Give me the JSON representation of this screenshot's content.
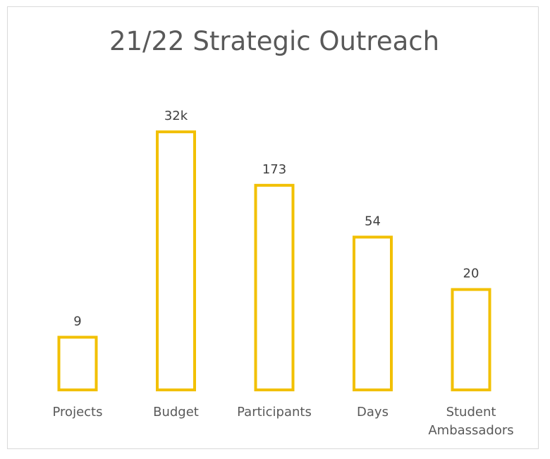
{
  "chart_data": {
    "type": "bar",
    "title": "21/22 Strategic Outreach",
    "categories": [
      "Projects",
      "Budget",
      "Participants",
      "Days",
      "Student Ambassadors"
    ],
    "category_label_lines": [
      [
        "Projects"
      ],
      [
        "Budget"
      ],
      [
        "Participants"
      ],
      [
        "Days"
      ],
      [
        "Student",
        "Ambassadors"
      ]
    ],
    "data_labels": [
      "9",
      "32k",
      "173",
      "54",
      "20"
    ],
    "relative_heights": [
      0.204,
      1.0,
      0.793,
      0.592,
      0.389
    ],
    "xlabel": "",
    "ylabel": "",
    "grid": false,
    "legend": "none",
    "bar_style": "outline",
    "colors": {
      "bar_outline": "#F2C000",
      "bar_fill": "#ffffff",
      "title": "#595959",
      "labels": "#595959",
      "frame": "#d9d9d9"
    }
  }
}
